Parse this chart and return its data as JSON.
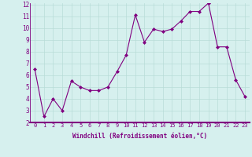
{
  "x": [
    0,
    1,
    2,
    3,
    4,
    5,
    6,
    7,
    8,
    9,
    10,
    11,
    12,
    13,
    14,
    15,
    16,
    17,
    18,
    19,
    20,
    21,
    22,
    23
  ],
  "y": [
    6.5,
    2.5,
    4.0,
    3.0,
    5.5,
    5.0,
    4.7,
    4.7,
    5.0,
    6.3,
    7.7,
    11.1,
    8.8,
    9.9,
    9.7,
    9.9,
    10.6,
    11.4,
    11.4,
    12.1,
    8.4,
    8.4,
    5.6,
    4.2
  ],
  "line_color": "#800080",
  "marker": "D",
  "marker_size": 2,
  "bg_color": "#d6f0ee",
  "grid_color": "#b8dcd8",
  "xlabel": "Windchill (Refroidissement éolien,°C)",
  "xlabel_color": "#800080",
  "tick_color": "#800080",
  "spine_color": "#800080",
  "ylim": [
    2,
    12
  ],
  "xlim": [
    -0.5,
    23.5
  ],
  "yticks": [
    2,
    3,
    4,
    5,
    6,
    7,
    8,
    9,
    10,
    11,
    12
  ],
  "xticks": [
    0,
    1,
    2,
    3,
    4,
    5,
    6,
    7,
    8,
    9,
    10,
    11,
    12,
    13,
    14,
    15,
    16,
    17,
    18,
    19,
    20,
    21,
    22,
    23
  ],
  "tick_fontsize": 5,
  "xlabel_fontsize": 5.5,
  "ytick_fontsize": 5.5
}
